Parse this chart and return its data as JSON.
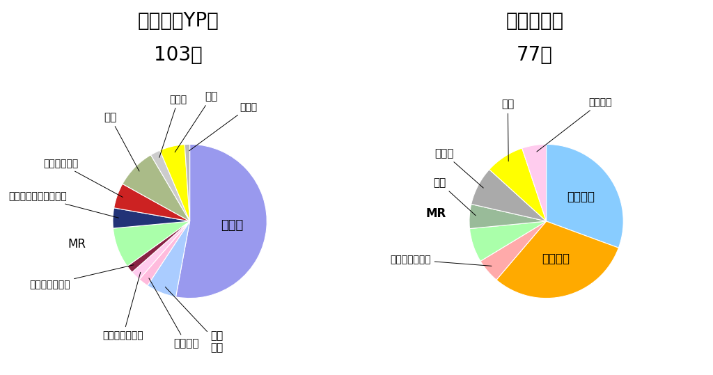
{
  "chart1": {
    "title_line1": "薬学科（YP）",
    "title_line2": "103人",
    "labels": [
      "薬剤師",
      "技術開発",
      "応用研究",
      "生産・品質管理",
      "学術・安全管理",
      "MR",
      "調査・マーケティング",
      "その他専門職",
      "行政",
      "他職種",
      "進学",
      "その他"
    ],
    "values": [
      50,
      6,
      2,
      2,
      1.5,
      8,
      4,
      5,
      8,
      2,
      5,
      1
    ],
    "colors": [
      "#9999ee",
      "#aaccff",
      "#ffbbdd",
      "#ffccee",
      "#882244",
      "#aaffaa",
      "#223377",
      "#cc2222",
      "#aabb88",
      "#cccccc",
      "#ffff00",
      "#bbbbbb"
    ]
  },
  "chart2": {
    "title_line1": "大学院修士",
    "title_line2": "77人",
    "labels": [
      "技術開発",
      "基礎研究",
      "生産・品質管理",
      "MR",
      "行政",
      "他職種",
      "進学",
      "応用研究"
    ],
    "values": [
      30,
      30,
      5,
      7,
      5,
      8,
      8,
      5
    ],
    "colors": [
      "#88ccff",
      "#ffaa00",
      "#ffaaaa",
      "#aaffaa",
      "#99bb99",
      "#aaaaaa",
      "#ffff00",
      "#ffccee"
    ]
  },
  "bg_color": "#ffffff",
  "title_fontsize": 20,
  "label_fontsize": 11
}
